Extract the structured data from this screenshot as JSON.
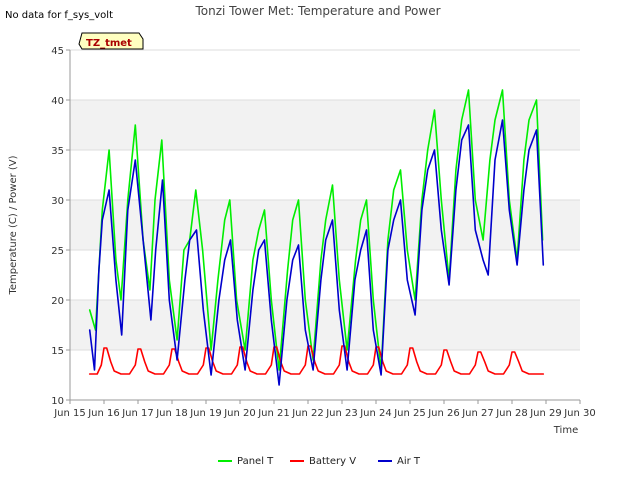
{
  "no_data_text": "No data for f_sys_volt",
  "site_badge": "TZ_tmet",
  "colors": {
    "band": "#f2f2f2",
    "grid": "#dddddd",
    "axis": "#999999",
    "badge_bg": "#ffffc0",
    "badge_border": "#000000"
  },
  "chart_data": {
    "type": "line",
    "title": "Tonzi Tower Met: Temperature and Power",
    "xlabel": "Time",
    "ylabel": "Temperature (C) / Power (V)",
    "xlim": [
      15,
      30
    ],
    "ylim": [
      10,
      45
    ],
    "x_ticks": [
      15,
      16,
      17,
      18,
      19,
      20,
      21,
      22,
      23,
      24,
      25,
      26,
      27,
      28,
      29,
      30
    ],
    "x_tick_labels": [
      "Jun 15",
      "Jun 16",
      "Jun 17",
      "Jun 18",
      "Jun 19",
      "Jun 20",
      "Jun 21",
      "Jun 22",
      "Jun 23",
      "Jun 24",
      "Jun 25",
      "Jun 26",
      "Jun 27",
      "Jun 28",
      "Jun 29",
      "Jun 30"
    ],
    "y_ticks": [
      10,
      15,
      20,
      25,
      30,
      35,
      40,
      45
    ],
    "y_tick_labels": [
      "10",
      "15",
      "20",
      "25",
      "30",
      "35",
      "40",
      "45"
    ],
    "legend_position": "bottom-center",
    "series": [
      {
        "name": "Panel T",
        "color": "#00ee00",
        "x": [
          15.58,
          15.75,
          15.95,
          16.15,
          16.35,
          16.5,
          16.7,
          16.92,
          17.15,
          17.35,
          17.5,
          17.7,
          17.92,
          18.15,
          18.35,
          18.52,
          18.7,
          18.9,
          19.15,
          19.35,
          19.55,
          19.7,
          19.9,
          20.15,
          20.38,
          20.55,
          20.72,
          20.92,
          21.15,
          21.4,
          21.55,
          21.72,
          21.92,
          22.15,
          22.38,
          22.52,
          22.72,
          22.92,
          23.15,
          23.4,
          23.55,
          23.72,
          23.92,
          24.15,
          24.35,
          24.52,
          24.72,
          24.92,
          25.15,
          25.35,
          25.52,
          25.72,
          25.92,
          26.15,
          26.35,
          26.52,
          26.72,
          26.92,
          27.15,
          27.35,
          27.5,
          27.72,
          27.92,
          28.15,
          28.35,
          28.5,
          28.72,
          28.9
        ],
        "y": [
          19,
          17,
          29,
          35,
          24,
          20,
          30,
          37.5,
          26,
          21,
          30,
          36,
          22,
          16,
          25,
          26,
          31,
          25,
          15,
          22,
          28,
          30,
          20,
          15,
          24,
          27,
          29,
          20,
          13,
          23,
          28,
          30,
          20,
          14,
          24,
          28,
          31.5,
          22,
          15,
          24,
          28,
          30,
          20,
          13,
          26,
          31,
          33,
          25,
          20,
          30,
          35,
          39,
          30,
          22,
          33,
          38,
          41,
          30,
          26,
          34,
          38,
          41,
          30,
          24,
          34,
          38,
          40,
          26
        ]
      },
      {
        "name": "Battery V",
        "color": "#ff0000",
        "x": [
          15.58,
          15.8,
          15.92,
          16.0,
          16.08,
          16.2,
          16.3,
          16.5,
          16.75,
          16.92,
          17.0,
          17.08,
          17.2,
          17.3,
          17.5,
          17.75,
          17.92,
          18.0,
          18.08,
          18.2,
          18.3,
          18.5,
          18.75,
          18.92,
          19.0,
          19.08,
          19.2,
          19.3,
          19.5,
          19.75,
          19.92,
          20.0,
          20.08,
          20.2,
          20.3,
          20.5,
          20.75,
          20.92,
          21.0,
          21.08,
          21.2,
          21.3,
          21.5,
          21.75,
          21.92,
          22.0,
          22.08,
          22.2,
          22.3,
          22.5,
          22.75,
          22.92,
          23.0,
          23.08,
          23.2,
          23.3,
          23.5,
          23.75,
          23.92,
          24.0,
          24.08,
          24.2,
          24.3,
          24.5,
          24.75,
          24.92,
          25.0,
          25.08,
          25.2,
          25.3,
          25.5,
          25.75,
          25.92,
          26.0,
          26.08,
          26.2,
          26.3,
          26.5,
          26.75,
          26.92,
          27.0,
          27.08,
          27.2,
          27.3,
          27.5,
          27.75,
          27.92,
          28.0,
          28.08,
          28.2,
          28.3,
          28.5,
          28.75,
          28.92
        ],
        "y": [
          12.6,
          12.6,
          13.5,
          15.2,
          15.2,
          13.8,
          12.9,
          12.6,
          12.6,
          13.5,
          15.1,
          15.1,
          13.8,
          12.9,
          12.6,
          12.6,
          13.5,
          15.1,
          15.1,
          13.8,
          12.9,
          12.6,
          12.6,
          13.5,
          15.2,
          15.2,
          13.8,
          12.9,
          12.6,
          12.6,
          13.5,
          15.3,
          15.3,
          13.8,
          12.9,
          12.6,
          12.6,
          13.5,
          15.3,
          15.3,
          13.8,
          12.9,
          12.6,
          12.6,
          13.5,
          15.4,
          15.4,
          13.8,
          12.9,
          12.6,
          12.6,
          13.5,
          15.4,
          15.4,
          13.8,
          12.9,
          12.6,
          12.6,
          13.5,
          15.3,
          15.3,
          13.8,
          12.9,
          12.6,
          12.6,
          13.5,
          15.2,
          15.2,
          13.8,
          12.9,
          12.6,
          12.6,
          13.5,
          15.0,
          15.0,
          13.8,
          12.9,
          12.6,
          12.6,
          13.5,
          14.8,
          14.8,
          13.8,
          12.9,
          12.6,
          12.6,
          13.5,
          14.8,
          14.8,
          13.8,
          12.9,
          12.6,
          12.6,
          12.6
        ]
      },
      {
        "name": "Air T",
        "color": "#0000cc",
        "x": [
          15.58,
          15.72,
          15.85,
          15.95,
          16.15,
          16.35,
          16.52,
          16.7,
          16.92,
          17.15,
          17.38,
          17.52,
          17.72,
          17.92,
          18.15,
          18.38,
          18.52,
          18.72,
          18.92,
          19.15,
          19.38,
          19.55,
          19.72,
          19.92,
          20.15,
          20.38,
          20.55,
          20.72,
          20.92,
          21.15,
          21.38,
          21.55,
          21.72,
          21.92,
          22.15,
          22.38,
          22.52,
          22.72,
          22.92,
          23.15,
          23.38,
          23.55,
          23.72,
          23.92,
          24.15,
          24.35,
          24.52,
          24.72,
          24.92,
          25.15,
          25.35,
          25.52,
          25.72,
          25.92,
          26.15,
          26.35,
          26.52,
          26.72,
          26.92,
          27.15,
          27.3,
          27.5,
          27.72,
          27.92,
          28.15,
          28.35,
          28.5,
          28.72,
          28.92
        ],
        "y": [
          17,
          13,
          23,
          28,
          31,
          22,
          16.5,
          29,
          34,
          26,
          18,
          25,
          32,
          20,
          14,
          22,
          26,
          27,
          19,
          12.5,
          20,
          24,
          26,
          18,
          13,
          21,
          25,
          26,
          18,
          11.5,
          20,
          24,
          25.5,
          17,
          13,
          22,
          26,
          28,
          19,
          13,
          22,
          25,
          27,
          17,
          12.5,
          25,
          28,
          30,
          22,
          18.5,
          29,
          33,
          35,
          27,
          21.5,
          31,
          36,
          37.5,
          27,
          24,
          22.5,
          34,
          38,
          29,
          23.5,
          31,
          35,
          37,
          23.5
        ]
      }
    ]
  }
}
